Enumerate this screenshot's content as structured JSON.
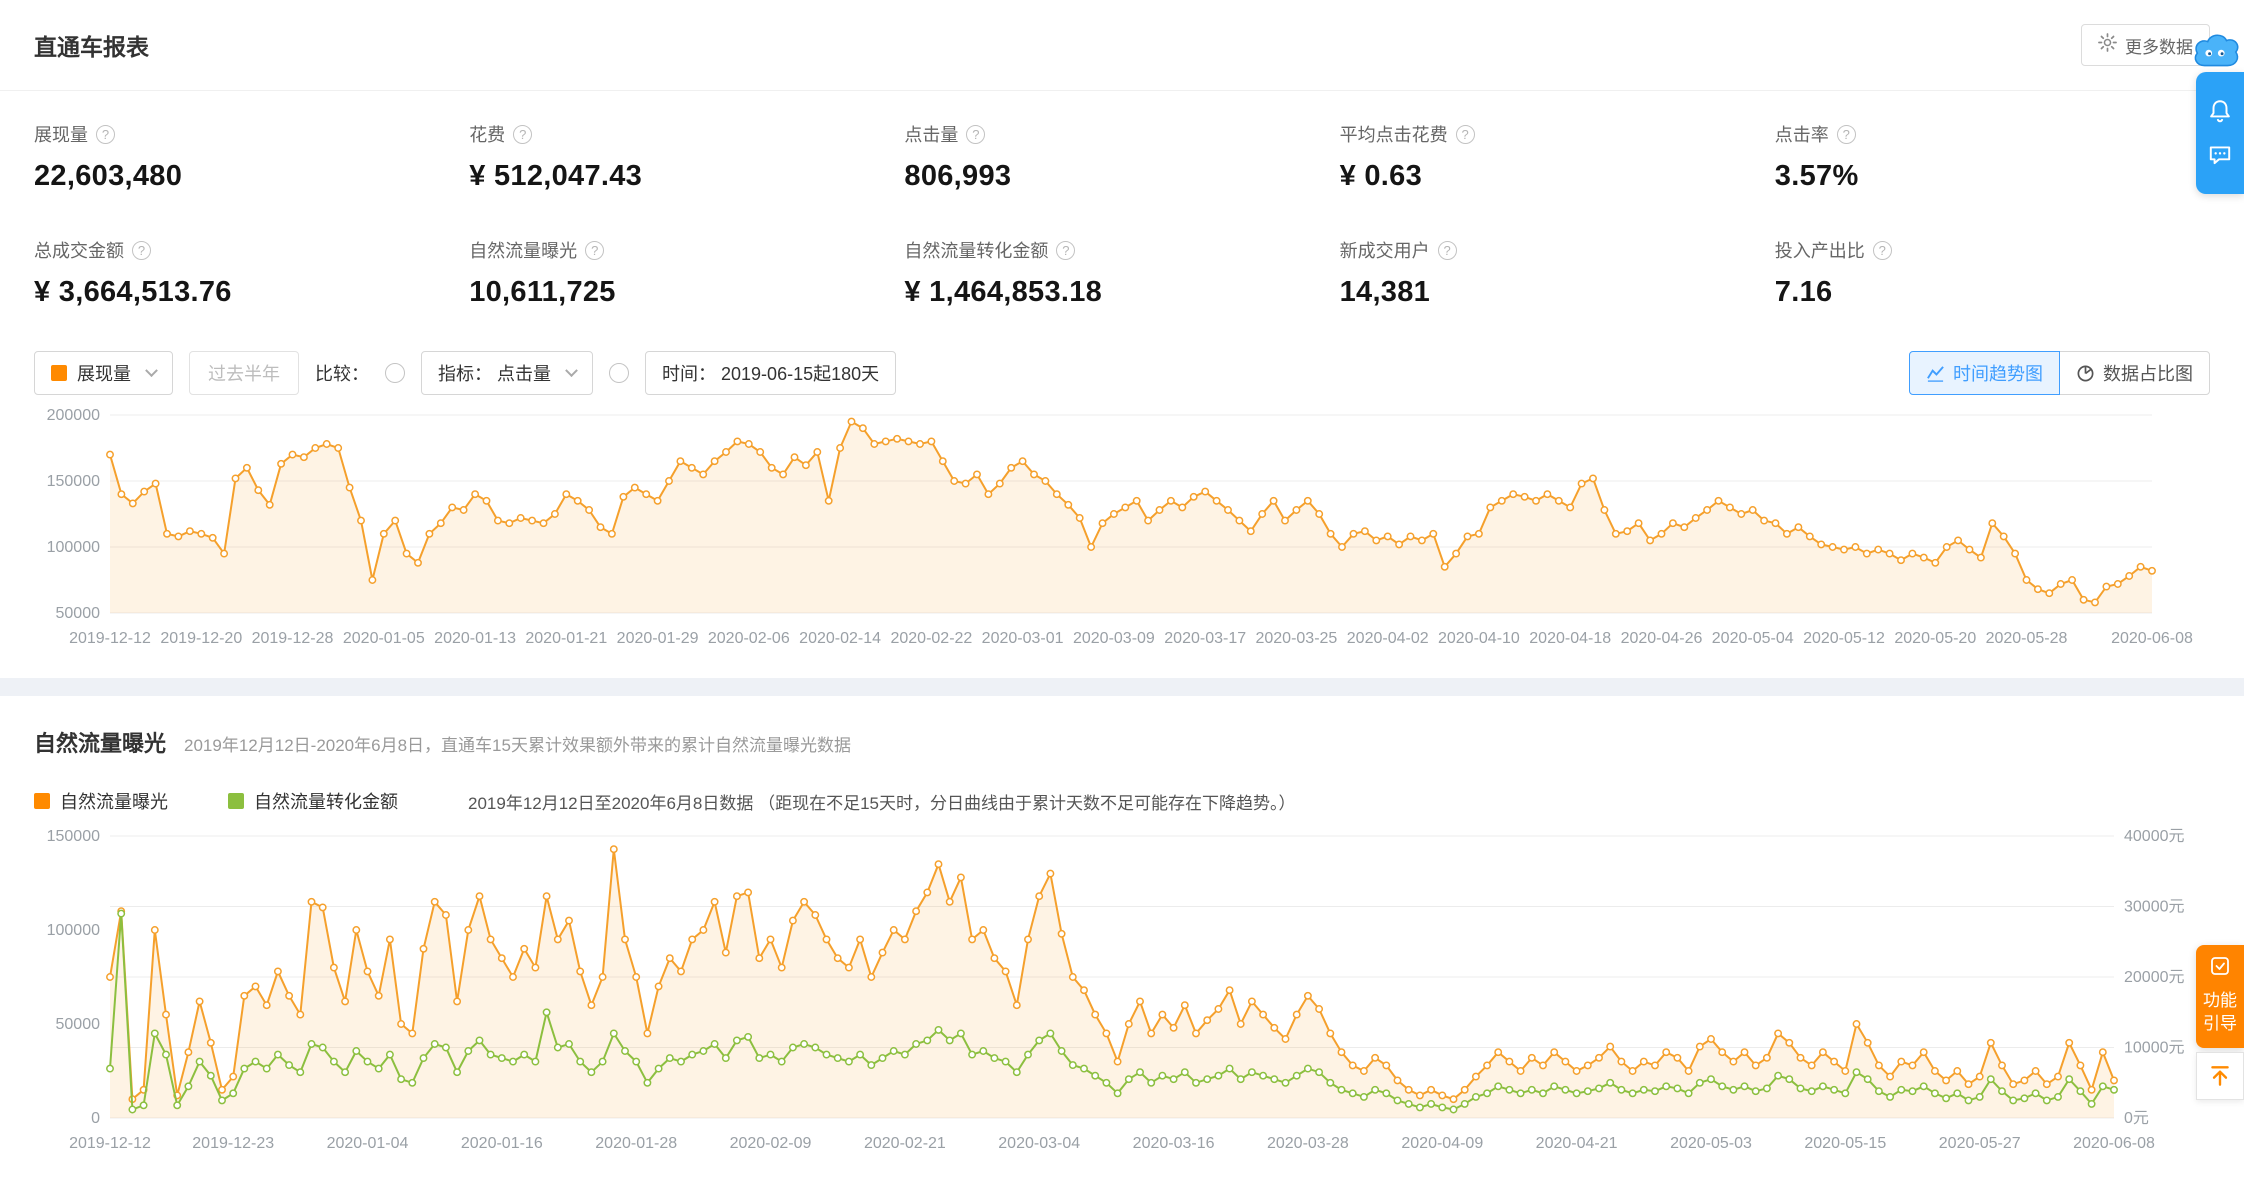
{
  "colors": {
    "accent_blue": "#409eff",
    "brand_orange": "#ff8a00",
    "chart_orange": "#f5a02c",
    "chart_green": "#8cbf3f",
    "panel_blue": "#2ba2f7"
  },
  "report": {
    "title": "直通车报表",
    "more_button": "更多数据",
    "metrics": [
      {
        "label": "展现量",
        "value": "22,603,480"
      },
      {
        "label": "花费",
        "value": "¥ 512,047.43"
      },
      {
        "label": "点击量",
        "value": "806,993"
      },
      {
        "label": "平均点击花费",
        "value": "¥ 0.63"
      },
      {
        "label": "点击率",
        "value": "3.57%"
      },
      {
        "label": "总成交金额",
        "value": "¥ 3,664,513.76"
      },
      {
        "label": "自然流量曝光",
        "value": "10,611,725"
      },
      {
        "label": "自然流量转化金额",
        "value": "¥ 1,464,853.18"
      },
      {
        "label": "新成交用户",
        "value": "14,381"
      },
      {
        "label": "投入产出比",
        "value": "7.16"
      }
    ]
  },
  "controls": {
    "metric_select_value": "展现量",
    "past_half_year": "过去半年",
    "compare_label": "比较：",
    "indicator_select_value": "指标： 点击量",
    "time_range": "时间： 2019-06-15起180天",
    "view_toggle": [
      {
        "label": "时间趋势图"
      },
      {
        "label": "数据占比图"
      }
    ]
  },
  "organic": {
    "title": "自然流量曝光",
    "subtitle": "2019年12月12日-2020年6月8日，直通车15天累计效果额外带来的累计自然流量曝光数据",
    "legend": [
      {
        "label": "自然流量曝光",
        "color": "#ff8a00"
      },
      {
        "label": "自然流量转化金额",
        "color": "#8cbf3f"
      }
    ],
    "note": "2019年12月12日至2020年6月8日数据 （距现在不足15天时，分日曲线由于累计天数不足可能存在下降趋势。）"
  },
  "floating": {
    "guide_tab": "功能引导"
  },
  "chart_data": [
    {
      "type": "line",
      "x_tick_labels": [
        "2019-12-12",
        "2019-12-20",
        "2019-12-28",
        "2020-01-05",
        "2020-01-13",
        "2020-01-21",
        "2020-01-29",
        "2020-02-06",
        "2020-02-14",
        "2020-02-22",
        "2020-03-01",
        "2020-03-09",
        "2020-03-17",
        "2020-03-25",
        "2020-04-02",
        "2020-04-10",
        "2020-04-18",
        "2020-04-26",
        "2020-05-04",
        "2020-05-12",
        "2020-05-20",
        "2020-05-28",
        "2020-06-08"
      ],
      "x_tick_day_offsets": [
        0,
        8,
        16,
        24,
        32,
        40,
        48,
        56,
        64,
        72,
        80,
        88,
        96,
        104,
        112,
        120,
        128,
        136,
        144,
        152,
        160,
        168,
        179
      ],
      "left_axis": {
        "min": 50000,
        "max": 200000
      },
      "left_ticks": [
        "50000",
        "100000",
        "150000",
        "200000"
      ],
      "series": [
        {
          "name": "展现量",
          "color": "#f5a02c",
          "area": true,
          "values": [
            170000,
            140000,
            133000,
            142000,
            148000,
            110000,
            108000,
            112000,
            110000,
            107000,
            95000,
            152000,
            160000,
            143000,
            132000,
            163000,
            170000,
            168000,
            175000,
            178000,
            175000,
            145000,
            120000,
            75000,
            110000,
            120000,
            95000,
            88000,
            110000,
            118000,
            130000,
            128000,
            140000,
            135000,
            120000,
            118000,
            122000,
            120000,
            118000,
            125000,
            140000,
            135000,
            128000,
            115000,
            110000,
            138000,
            145000,
            140000,
            135000,
            150000,
            165000,
            160000,
            155000,
            165000,
            172000,
            180000,
            178000,
            172000,
            160000,
            155000,
            168000,
            162000,
            172000,
            135000,
            175000,
            195000,
            190000,
            178000,
            180000,
            182000,
            180000,
            178000,
            180000,
            165000,
            150000,
            148000,
            155000,
            140000,
            148000,
            160000,
            165000,
            155000,
            150000,
            140000,
            132000,
            122000,
            100000,
            118000,
            125000,
            130000,
            135000,
            120000,
            128000,
            135000,
            130000,
            138000,
            142000,
            135000,
            128000,
            120000,
            112000,
            125000,
            135000,
            120000,
            128000,
            135000,
            125000,
            110000,
            100000,
            110000,
            112000,
            105000,
            108000,
            102000,
            108000,
            105000,
            110000,
            85000,
            95000,
            108000,
            110000,
            130000,
            135000,
            140000,
            138000,
            135000,
            140000,
            135000,
            130000,
            148000,
            152000,
            128000,
            110000,
            112000,
            118000,
            105000,
            110000,
            118000,
            115000,
            122000,
            128000,
            135000,
            130000,
            125000,
            128000,
            120000,
            118000,
            110000,
            115000,
            108000,
            102000,
            100000,
            98000,
            100000,
            95000,
            98000,
            95000,
            90000,
            95000,
            92000,
            88000,
            100000,
            105000,
            98000,
            92000,
            118000,
            108000,
            95000,
            75000,
            68000,
            65000,
            72000,
            75000,
            60000,
            58000,
            70000,
            72000,
            78000,
            85000,
            82000
          ]
        }
      ]
    },
    {
      "type": "line-dual-axis",
      "x_tick_labels": [
        "2019-12-12",
        "2019-12-23",
        "2020-01-04",
        "2020-01-16",
        "2020-01-28",
        "2020-02-09",
        "2020-02-21",
        "2020-03-04",
        "2020-03-16",
        "2020-03-28",
        "2020-04-09",
        "2020-04-21",
        "2020-05-03",
        "2020-05-15",
        "2020-05-27",
        "2020-06-08"
      ],
      "x_tick_day_offsets": [
        0,
        11,
        23,
        35,
        47,
        59,
        71,
        83,
        95,
        107,
        119,
        131,
        143,
        155,
        167,
        179
      ],
      "left_axis": {
        "min": 0,
        "max": 150000
      },
      "left_ticks": [
        "0",
        "50000",
        "100000",
        "150000"
      ],
      "right_axis": {
        "min": 0,
        "max": 40000
      },
      "right_ticks": [
        "0元",
        "10000元",
        "20000元",
        "30000元",
        "40000元"
      ],
      "series": [
        {
          "name": "自然流量曝光",
          "axis": "left",
          "color": "#f5a02c",
          "area": true,
          "values": [
            75000,
            110000,
            10000,
            15000,
            100000,
            55000,
            12000,
            35000,
            62000,
            40000,
            15000,
            22000,
            65000,
            70000,
            60000,
            78000,
            65000,
            55000,
            115000,
            112000,
            80000,
            62000,
            100000,
            78000,
            65000,
            95000,
            50000,
            45000,
            90000,
            115000,
            108000,
            62000,
            100000,
            118000,
            95000,
            85000,
            75000,
            90000,
            80000,
            118000,
            95000,
            105000,
            78000,
            60000,
            75000,
            143000,
            95000,
            75000,
            45000,
            70000,
            85000,
            78000,
            95000,
            100000,
            115000,
            88000,
            118000,
            120000,
            85000,
            95000,
            80000,
            105000,
            115000,
            108000,
            95000,
            85000,
            80000,
            95000,
            75000,
            88000,
            100000,
            95000,
            110000,
            120000,
            135000,
            115000,
            128000,
            95000,
            100000,
            85000,
            78000,
            60000,
            95000,
            118000,
            130000,
            98000,
            75000,
            68000,
            55000,
            45000,
            30000,
            50000,
            62000,
            45000,
            55000,
            48000,
            60000,
            45000,
            52000,
            58000,
            68000,
            50000,
            62000,
            55000,
            48000,
            42000,
            55000,
            65000,
            58000,
            45000,
            35000,
            28000,
            25000,
            32000,
            28000,
            20000,
            15000,
            12000,
            15000,
            12000,
            10000,
            15000,
            22000,
            28000,
            35000,
            30000,
            25000,
            32000,
            28000,
            35000,
            30000,
            25000,
            28000,
            32000,
            38000,
            30000,
            25000,
            30000,
            28000,
            35000,
            32000,
            25000,
            38000,
            42000,
            35000,
            30000,
            35000,
            28000,
            32000,
            45000,
            40000,
            32000,
            28000,
            35000,
            30000,
            25000,
            50000,
            40000,
            28000,
            22000,
            30000,
            28000,
            35000,
            25000,
            20000,
            25000,
            18000,
            22000,
            40000,
            28000,
            18000,
            20000,
            25000,
            18000,
            22000,
            40000,
            28000,
            15000,
            35000,
            20000
          ]
        },
        {
          "name": "自然流量转化金额",
          "axis": "right",
          "color": "#8cbf3f",
          "values": [
            7000,
            29000,
            1200,
            1800,
            12000,
            9000,
            1800,
            4500,
            8000,
            6000,
            2500,
            3500,
            7000,
            8000,
            7000,
            9000,
            7500,
            6500,
            10500,
            10000,
            8000,
            6500,
            9500,
            8000,
            7000,
            9000,
            5500,
            5000,
            8500,
            10500,
            10000,
            6500,
            9500,
            11000,
            9000,
            8500,
            8000,
            9000,
            8000,
            15000,
            10000,
            10500,
            8000,
            6500,
            8000,
            12000,
            9500,
            8000,
            5000,
            7000,
            8500,
            8000,
            9000,
            9500,
            10500,
            8500,
            11000,
            11500,
            8500,
            9000,
            8000,
            10000,
            10500,
            10000,
            9000,
            8500,
            8000,
            9000,
            7500,
            8500,
            9500,
            9000,
            10500,
            11000,
            12500,
            11000,
            12000,
            9000,
            9500,
            8500,
            8000,
            6500,
            9000,
            11000,
            12000,
            9500,
            7500,
            7000,
            6000,
            5000,
            3500,
            5500,
            6500,
            5000,
            6000,
            5500,
            6500,
            5000,
            5500,
            6000,
            7000,
            5500,
            6500,
            6000,
            5500,
            5000,
            6000,
            7000,
            6500,
            5000,
            4000,
            3500,
            3000,
            4000,
            3500,
            2500,
            2000,
            1500,
            2000,
            1500,
            1200,
            2000,
            3000,
            3500,
            4500,
            4000,
            3500,
            4000,
            3500,
            4500,
            4000,
            3500,
            3800,
            4200,
            5000,
            4000,
            3500,
            4000,
            3800,
            4500,
            4200,
            3500,
            5000,
            5500,
            4500,
            4000,
            4500,
            3800,
            4200,
            6000,
            5500,
            4200,
            3800,
            4500,
            4000,
            3500,
            6500,
            5500,
            3800,
            3000,
            4000,
            3800,
            4500,
            3500,
            2800,
            3500,
            2500,
            3000,
            5500,
            3800,
            2500,
            2800,
            3500,
            2500,
            3000,
            5500,
            3800,
            2000,
            4500,
            4000
          ]
        }
      ]
    }
  ]
}
